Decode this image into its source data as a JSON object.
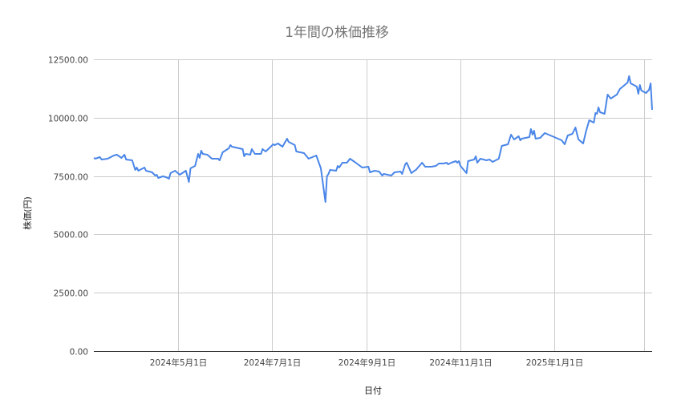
{
  "chart_data": {
    "type": "line",
    "title": "1年間の株価推移",
    "xlabel": "日付",
    "ylabel": "株価(円)",
    "x_range": [
      "2024-03-07",
      "2025-03-06"
    ],
    "ylim": [
      0,
      12500
    ],
    "y_ticks": [
      0,
      2500,
      5000,
      7500,
      10000,
      12500
    ],
    "y_tick_labels": [
      "0.00",
      "2500.00",
      "5000.00",
      "7500.00",
      "10000.00",
      "12500.00"
    ],
    "x_ticks": [
      {
        "date": "2024-05-01",
        "label": "2024年5月1日"
      },
      {
        "date": "2024-07-01",
        "label": "2024年7月1日"
      },
      {
        "date": "2024-09-01",
        "label": "2024年9月1日"
      },
      {
        "date": "2024-11-01",
        "label": "2024年11月1日"
      },
      {
        "date": "2025-01-01",
        "label": "2025年1月1日"
      },
      {
        "date": "2025-03-01",
        "label": ""
      }
    ],
    "grid": true,
    "legend": "none",
    "line_color": "#4a86e8",
    "series": [
      {
        "points": [
          [
            "2024-03-07",
            8276
          ],
          [
            "2024-03-08",
            8242
          ],
          [
            "2024-03-11",
            8310
          ],
          [
            "2024-03-12",
            8207
          ],
          [
            "2024-03-16",
            8242
          ],
          [
            "2024-03-20",
            8379
          ],
          [
            "2024-03-22",
            8413
          ],
          [
            "2024-03-25",
            8276
          ],
          [
            "2024-03-27",
            8413
          ],
          [
            "2024-03-28",
            8207
          ],
          [
            "2024-04-01",
            8173
          ],
          [
            "2024-04-03",
            7761
          ],
          [
            "2024-04-04",
            7864
          ],
          [
            "2024-04-05",
            7727
          ],
          [
            "2024-04-09",
            7864
          ],
          [
            "2024-04-10",
            7727
          ],
          [
            "2024-04-14",
            7658
          ],
          [
            "2024-04-16",
            7520
          ],
          [
            "2024-04-17",
            7555
          ],
          [
            "2024-04-18",
            7417
          ],
          [
            "2024-04-21",
            7486
          ],
          [
            "2024-04-23",
            7452
          ],
          [
            "2024-04-25",
            7383
          ],
          [
            "2024-04-26",
            7623
          ],
          [
            "2024-04-29",
            7727
          ],
          [
            "2024-05-02",
            7555
          ],
          [
            "2024-05-06",
            7727
          ],
          [
            "2024-05-08",
            7246
          ],
          [
            "2024-05-09",
            7829
          ],
          [
            "2024-05-12",
            7933
          ],
          [
            "2024-05-14",
            8448
          ],
          [
            "2024-05-15",
            8276
          ],
          [
            "2024-05-16",
            8585
          ],
          [
            "2024-05-17",
            8448
          ],
          [
            "2024-05-20",
            8413
          ],
          [
            "2024-05-23",
            8242
          ],
          [
            "2024-05-27",
            8242
          ],
          [
            "2024-05-28",
            8173
          ],
          [
            "2024-05-30",
            8516
          ],
          [
            "2024-06-03",
            8688
          ],
          [
            "2024-06-04",
            8825
          ],
          [
            "2024-06-05",
            8757
          ],
          [
            "2024-06-12",
            8654
          ],
          [
            "2024-06-13",
            8345
          ],
          [
            "2024-06-14",
            8448
          ],
          [
            "2024-06-17",
            8413
          ],
          [
            "2024-06-18",
            8654
          ],
          [
            "2024-06-20",
            8448
          ],
          [
            "2024-06-24",
            8448
          ],
          [
            "2024-06-25",
            8654
          ],
          [
            "2024-06-27",
            8551
          ],
          [
            "2024-07-02",
            8860
          ],
          [
            "2024-07-03",
            8825
          ],
          [
            "2024-07-05",
            8894
          ],
          [
            "2024-07-08",
            8757
          ],
          [
            "2024-07-11",
            9100
          ],
          [
            "2024-07-12",
            8963
          ],
          [
            "2024-07-16",
            8825
          ],
          [
            "2024-07-17",
            8551
          ],
          [
            "2024-07-22",
            8482
          ],
          [
            "2024-07-25",
            8242
          ],
          [
            "2024-07-30",
            8379
          ],
          [
            "2024-08-02",
            7829
          ],
          [
            "2024-08-05",
            6387
          ],
          [
            "2024-08-06",
            7486
          ],
          [
            "2024-08-07",
            7589
          ],
          [
            "2024-08-08",
            7761
          ],
          [
            "2024-08-12",
            7727
          ],
          [
            "2024-08-13",
            7933
          ],
          [
            "2024-08-14",
            7864
          ],
          [
            "2024-08-16",
            8070
          ],
          [
            "2024-08-19",
            8070
          ],
          [
            "2024-08-21",
            8242
          ],
          [
            "2024-08-24",
            8104
          ],
          [
            "2024-08-29",
            7864
          ],
          [
            "2024-09-02",
            7898
          ],
          [
            "2024-09-03",
            7658
          ],
          [
            "2024-09-06",
            7727
          ],
          [
            "2024-09-09",
            7692
          ],
          [
            "2024-09-11",
            7520
          ],
          [
            "2024-09-12",
            7589
          ],
          [
            "2024-09-17",
            7520
          ],
          [
            "2024-09-19",
            7658
          ],
          [
            "2024-09-23",
            7692
          ],
          [
            "2024-09-24",
            7589
          ],
          [
            "2024-09-26",
            8001
          ],
          [
            "2024-09-27",
            8070
          ],
          [
            "2024-09-30",
            7623
          ],
          [
            "2024-10-02",
            7727
          ],
          [
            "2024-10-03",
            7761
          ],
          [
            "2024-10-07",
            8070
          ],
          [
            "2024-10-09",
            7898
          ],
          [
            "2024-10-13",
            7898
          ],
          [
            "2024-10-16",
            7933
          ],
          [
            "2024-10-18",
            8036
          ],
          [
            "2024-10-21",
            8036
          ],
          [
            "2024-10-23",
            8070
          ],
          [
            "2024-10-24",
            8001
          ],
          [
            "2024-10-26",
            8070
          ],
          [
            "2024-10-29",
            8139
          ],
          [
            "2024-10-30",
            8070
          ],
          [
            "2024-10-31",
            8139
          ],
          [
            "2024-11-01",
            7933
          ],
          [
            "2024-11-05",
            7623
          ],
          [
            "2024-11-06",
            8139
          ],
          [
            "2024-11-10",
            8207
          ],
          [
            "2024-11-11",
            8345
          ],
          [
            "2024-11-12",
            8070
          ],
          [
            "2024-11-14",
            8242
          ],
          [
            "2024-11-18",
            8173
          ],
          [
            "2024-11-20",
            8207
          ],
          [
            "2024-11-22",
            8104
          ],
          [
            "2024-11-25",
            8207
          ],
          [
            "2024-11-26",
            8242
          ],
          [
            "2024-11-28",
            8791
          ],
          [
            "2024-12-02",
            8860
          ],
          [
            "2024-12-04",
            9272
          ],
          [
            "2024-12-06",
            9066
          ],
          [
            "2024-12-09",
            9203
          ],
          [
            "2024-12-10",
            9031
          ],
          [
            "2024-12-11",
            9100
          ],
          [
            "2024-12-16",
            9169
          ],
          [
            "2024-12-17",
            9512
          ],
          [
            "2024-12-18",
            9272
          ],
          [
            "2024-12-19",
            9444
          ],
          [
            "2024-12-20",
            9100
          ],
          [
            "2024-12-23",
            9134
          ],
          [
            "2024-12-24",
            9203
          ],
          [
            "2024-12-26",
            9340
          ],
          [
            "2025-01-06",
            9031
          ],
          [
            "2025-01-08",
            8860
          ],
          [
            "2025-01-10",
            9237
          ],
          [
            "2025-01-13",
            9306
          ],
          [
            "2025-01-15",
            9581
          ],
          [
            "2025-01-16",
            9306
          ],
          [
            "2025-01-17",
            9066
          ],
          [
            "2025-01-20",
            8894
          ],
          [
            "2025-01-22",
            9444
          ],
          [
            "2025-01-24",
            9890
          ],
          [
            "2025-01-27",
            9787
          ],
          [
            "2025-01-28",
            10199
          ],
          [
            "2025-01-29",
            10165
          ],
          [
            "2025-01-30",
            10439
          ],
          [
            "2025-01-31",
            10233
          ],
          [
            "2025-02-03",
            10165
          ],
          [
            "2025-02-05",
            10989
          ],
          [
            "2025-02-07",
            10817
          ],
          [
            "2025-02-11",
            10989
          ],
          [
            "2025-02-13",
            11229
          ],
          [
            "2025-02-18",
            11504
          ],
          [
            "2025-02-19",
            11779
          ],
          [
            "2025-02-20",
            11470
          ],
          [
            "2025-02-24",
            11332
          ],
          [
            "2025-02-25",
            11023
          ],
          [
            "2025-02-26",
            11401
          ],
          [
            "2025-02-27",
            11161
          ],
          [
            "2025-03-02",
            11057
          ],
          [
            "2025-03-04",
            11195
          ],
          [
            "2025-03-05",
            11470
          ],
          [
            "2025-03-06",
            10336
          ]
        ]
      }
    ]
  }
}
